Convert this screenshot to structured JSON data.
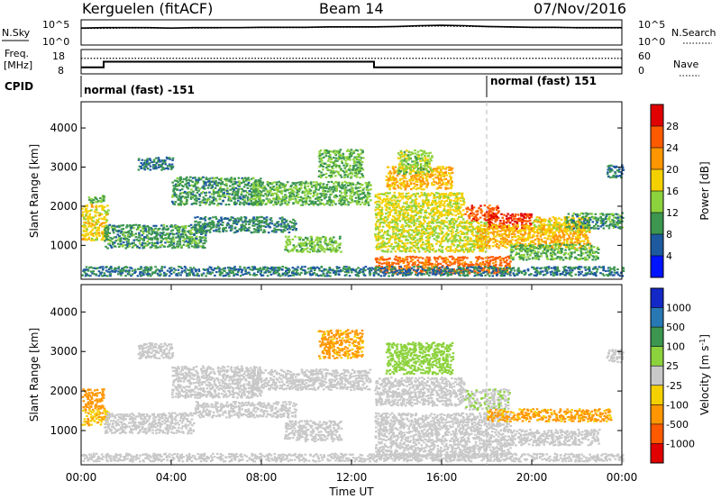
{
  "header": {
    "site": "Kerguelen (fitACF)",
    "beam": "Beam 14",
    "date": "07/Nov/2016"
  },
  "chart_data": [
    {
      "type": "line",
      "panel": "noise",
      "left_label": "N.Sky",
      "right_label": "N.Search",
      "y_ticks_left": [
        "10^5",
        "10^0"
      ],
      "y_ticks_right": [
        "10^5",
        "10^0"
      ],
      "scale": "log",
      "ylim": [
        1,
        100000
      ],
      "series_sky_log10": [
        3.6,
        3.7,
        3.7,
        3.7,
        3.6,
        3.7,
        3.7,
        3.7,
        3.8,
        3.8,
        3.8,
        3.9,
        3.9,
        3.9,
        4.0,
        4.2,
        4.3,
        4.2,
        4.0,
        3.9,
        3.8,
        3.8,
        3.7,
        3.7,
        3.7
      ],
      "series_search_log10": [
        3.5,
        3.5,
        3.6,
        3.6,
        3.6,
        3.6,
        3.6,
        3.7,
        3.7,
        3.7,
        3.7,
        3.8,
        3.8,
        3.8,
        3.9,
        4.0,
        4.1,
        4.0,
        3.9,
        3.8,
        3.7,
        3.7,
        3.6,
        3.6,
        3.6
      ]
    },
    {
      "type": "line",
      "panel": "frequency",
      "left_label_line1": "Freq.",
      "left_label_line2": "[MHz]",
      "right_label": "Nave",
      "y_ticks_left": [
        "18",
        "8"
      ],
      "y_ticks_right": [
        "60",
        "0"
      ],
      "ylim": [
        8,
        18
      ],
      "freq_steps": [
        {
          "from": "00:00",
          "to": "01:00",
          "mhz": 10.5
        },
        {
          "from": "01:00",
          "to": "13:00",
          "mhz": 13.0
        },
        {
          "from": "13:00",
          "to": "24:00",
          "mhz": 10.5
        }
      ],
      "nave": 39
    },
    {
      "type": "table",
      "panel": "cpid",
      "label": "CPID",
      "segments": [
        {
          "from": "00:00",
          "to": "18:00",
          "text": "normal (fast) -151"
        },
        {
          "from": "18:00",
          "to": "24:00",
          "text": "normal (fast) 151"
        }
      ]
    },
    {
      "type": "heatmap",
      "panel": "power",
      "ylabel": "Slant Range [km]",
      "ylim": [
        180,
        4600
      ],
      "y_ticks": [
        1000,
        2000,
        3000,
        4000
      ],
      "colorbar_label": "Power [dB]",
      "colorbar_ticks": [
        "28",
        "24",
        "20",
        "16",
        "12",
        "8",
        "4"
      ],
      "colorbar_colors": [
        "#e00000",
        "#ff5a00",
        "#ff9600",
        "#f5d000",
        "#8cd23c",
        "#3c9650",
        "#1e5aa0",
        "#0014ff"
      ],
      "clim": [
        0,
        32
      ],
      "bands": [
        {
          "t0": 0.0,
          "t1": 1.2,
          "r0": 1100,
          "r1": 2000,
          "v": 18
        },
        {
          "t0": 0.3,
          "t1": 1.0,
          "r0": 2050,
          "r1": 2250,
          "v": 12
        },
        {
          "t0": 1.0,
          "t1": 5.5,
          "r0": 900,
          "r1": 1500,
          "v": 10
        },
        {
          "t0": 2.5,
          "t1": 4.0,
          "r0": 2900,
          "r1": 3200,
          "v": 8
        },
        {
          "t0": 4.0,
          "t1": 8.0,
          "r0": 2000,
          "r1": 2700,
          "v": 10
        },
        {
          "t0": 5.0,
          "t1": 9.5,
          "r0": 1300,
          "r1": 1700,
          "v": 9
        },
        {
          "t0": 7.5,
          "t1": 12.8,
          "r0": 2000,
          "r1": 2600,
          "v": 12
        },
        {
          "t0": 9.0,
          "t1": 11.5,
          "r0": 800,
          "r1": 1200,
          "v": 13
        },
        {
          "t0": 10.5,
          "t1": 12.5,
          "r0": 2700,
          "r1": 3400,
          "v": 12
        },
        {
          "t0": 13.0,
          "t1": 17.0,
          "r0": 1600,
          "r1": 2300,
          "v": 17
        },
        {
          "t0": 13.5,
          "t1": 16.5,
          "r0": 2400,
          "r1": 3000,
          "v": 20
        },
        {
          "t0": 14.0,
          "t1": 15.5,
          "r0": 2800,
          "r1": 3400,
          "v": 14
        },
        {
          "t0": 13.0,
          "t1": 18.0,
          "r0": 800,
          "r1": 1600,
          "v": 16
        },
        {
          "t0": 13.0,
          "t1": 19.0,
          "r0": 250,
          "r1": 700,
          "v": 25
        },
        {
          "t0": 17.0,
          "t1": 18.5,
          "r0": 1600,
          "r1": 2000,
          "v": 26
        },
        {
          "t0": 18.0,
          "t1": 20.0,
          "r0": 1400,
          "r1": 1800,
          "v": 28
        },
        {
          "t0": 17.5,
          "t1": 22.5,
          "r0": 900,
          "r1": 1500,
          "v": 20
        },
        {
          "t0": 20.0,
          "t1": 22.5,
          "r0": 1300,
          "r1": 1700,
          "v": 18
        },
        {
          "t0": 21.5,
          "t1": 24.0,
          "r0": 1400,
          "r1": 1800,
          "v": 10
        },
        {
          "t0": 19.0,
          "t1": 23.0,
          "r0": 600,
          "r1": 1000,
          "v": 12
        },
        {
          "t0": 23.3,
          "t1": 24.0,
          "r0": 2700,
          "r1": 3000,
          "v": 8
        },
        {
          "t0": 0.0,
          "t1": 24.0,
          "r0": 190,
          "r1": 420,
          "v": 8
        }
      ]
    },
    {
      "type": "heatmap",
      "panel": "velocity",
      "ylabel": "Slant Range [km]",
      "ylim": [
        180,
        4600
      ],
      "y_ticks": [
        1000,
        2000,
        3000,
        4000
      ],
      "x_ticks": [
        "00:00",
        "04:00",
        "08:00",
        "12:00",
        "16:00",
        "20:00",
        "00:00"
      ],
      "xlabel": "Time UT",
      "colorbar_label": "Velocity [m s^-1]",
      "colorbar_ticks": [
        "1000",
        "500",
        "100",
        "25",
        "-25",
        "-100",
        "-500",
        "-1000"
      ],
      "colorbar_colors": [
        "#1428c8",
        "#2878b4",
        "#3c9650",
        "#8cd23c",
        "#c8c8c8",
        "#f5d000",
        "#ff9600",
        "#ff5a00",
        "#e00000"
      ],
      "clim": [
        -1250,
        1250
      ],
      "bands": [
        {
          "t0": 0.0,
          "t1": 1.0,
          "r0": 1500,
          "r1": 2000,
          "v": -500
        },
        {
          "t0": 0.0,
          "t1": 1.2,
          "r0": 1100,
          "r1": 1500,
          "v": -400
        },
        {
          "t0": 1.0,
          "t1": 5.0,
          "r0": 900,
          "r1": 1400,
          "v": 0
        },
        {
          "t0": 2.5,
          "t1": 4.0,
          "r0": 2800,
          "r1": 3200,
          "v": 0
        },
        {
          "t0": 4.0,
          "t1": 8.0,
          "r0": 1800,
          "r1": 2600,
          "v": 0
        },
        {
          "t0": 5.0,
          "t1": 9.5,
          "r0": 1300,
          "r1": 1700,
          "v": -60
        },
        {
          "t0": 7.5,
          "t1": 12.8,
          "r0": 2000,
          "r1": 2500,
          "v": 0
        },
        {
          "t0": 9.0,
          "t1": 11.5,
          "r0": 700,
          "r1": 1200,
          "v": 0
        },
        {
          "t0": 10.5,
          "t1": 12.5,
          "r0": 2800,
          "r1": 3500,
          "v": -450
        },
        {
          "t0": 13.5,
          "t1": 16.5,
          "r0": 2400,
          "r1": 3200,
          "v": 200
        },
        {
          "t0": 13.0,
          "t1": 17.0,
          "r0": 1600,
          "r1": 2300,
          "v": 0
        },
        {
          "t0": 13.0,
          "t1": 19.0,
          "r0": 300,
          "r1": 1400,
          "v": 0
        },
        {
          "t0": 17.0,
          "t1": 19.0,
          "r0": 1500,
          "r1": 2000,
          "v": 120
        },
        {
          "t0": 18.0,
          "t1": 23.5,
          "r0": 1200,
          "r1": 1500,
          "v": -450
        },
        {
          "t0": 19.0,
          "t1": 23.0,
          "r0": 600,
          "r1": 1000,
          "v": 0
        },
        {
          "t0": 23.3,
          "t1": 24.0,
          "r0": 2700,
          "r1": 3000,
          "v": 0
        },
        {
          "t0": 0.0,
          "t1": 24.0,
          "r0": 190,
          "r1": 400,
          "v": 0
        }
      ]
    }
  ]
}
